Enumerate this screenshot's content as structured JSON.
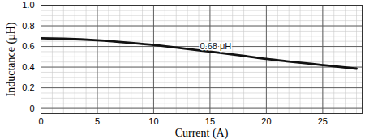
{
  "chart_data": {
    "type": "line",
    "x_label": "Current (A)",
    "y_label": "Inductance (μH)",
    "x": [
      0,
      2,
      5,
      8,
      10,
      12,
      15,
      18,
      20,
      22,
      25,
      28
    ],
    "series": [
      {
        "name": "0.68 μH",
        "color": "#111111",
        "values": [
          0.68,
          0.675,
          0.66,
          0.635,
          0.615,
          0.59,
          0.55,
          0.51,
          0.48,
          0.455,
          0.42,
          0.385
        ]
      }
    ],
    "annotations": [
      {
        "text": "0.68 μH",
        "x": 15.5,
        "y": 0.6
      }
    ],
    "xlim": [
      0,
      28.5
    ],
    "ylim": [
      -0.05,
      1.0
    ],
    "xticks": [
      0,
      5,
      10,
      15,
      20,
      25
    ],
    "yticks": [
      0,
      0.2,
      0.4,
      0.6,
      0.8,
      {
        "value": 1.0,
        "label": "1.0"
      }
    ],
    "grid": true
  }
}
